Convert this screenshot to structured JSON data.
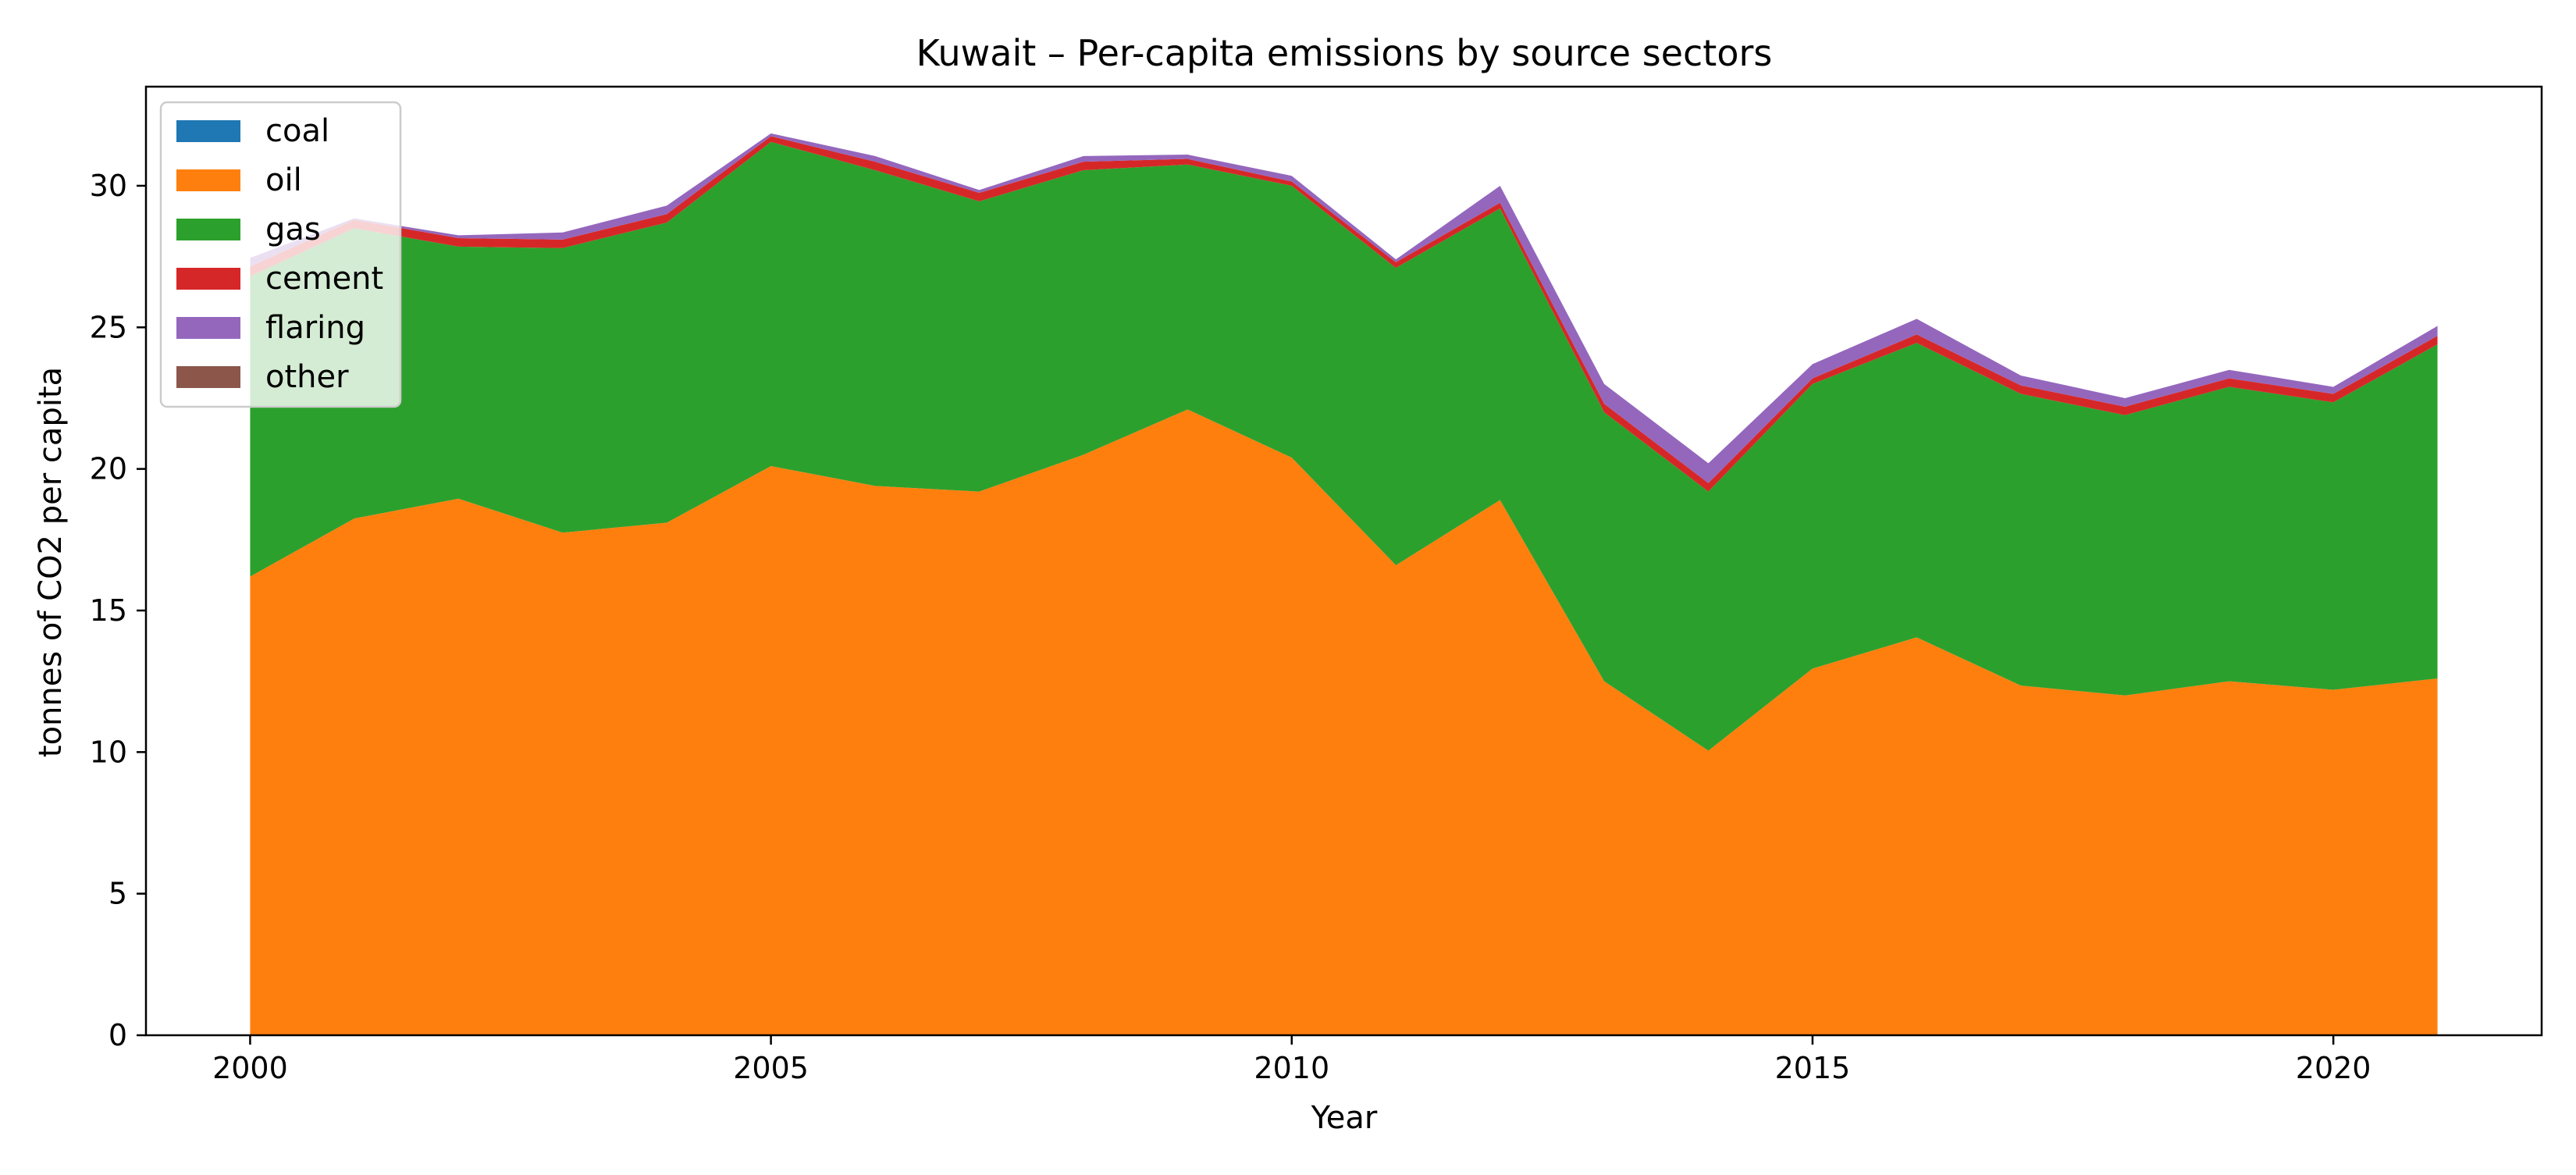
{
  "chart_data": {
    "type": "area",
    "stacked": true,
    "title": "Kuwait – Per-capita emissions by source sectors",
    "xlabel": "Year",
    "ylabel": "tonnes of CO2 per capita",
    "xlim": [
      1999,
      2022
    ],
    "ylim": [
      0,
      33.5
    ],
    "xticks": [
      2000,
      2005,
      2010,
      2015,
      2020
    ],
    "yticks": [
      0,
      5,
      10,
      15,
      20,
      25,
      30
    ],
    "grid": false,
    "legend_position": "upper-left",
    "x": [
      2000,
      2001,
      2002,
      2003,
      2004,
      2005,
      2006,
      2007,
      2008,
      2009,
      2010,
      2011,
      2012,
      2013,
      2014,
      2015,
      2016,
      2017,
      2018,
      2019,
      2020,
      2021
    ],
    "series": [
      {
        "name": "coal",
        "color": "#1f77b4",
        "values": [
          0,
          0,
          0,
          0,
          0,
          0,
          0,
          0,
          0,
          0,
          0,
          0,
          0,
          0,
          0,
          0,
          0,
          0,
          0,
          0,
          0,
          0
        ]
      },
      {
        "name": "oil",
        "color": "#ff7f0e",
        "values": [
          16.2,
          18.25,
          18.95,
          17.75,
          18.1,
          20.1,
          19.4,
          19.2,
          20.5,
          22.1,
          20.4,
          16.6,
          18.9,
          12.5,
          10.05,
          12.95,
          14.05,
          12.35,
          12.0,
          12.5,
          12.2,
          12.6
        ]
      },
      {
        "name": "gas",
        "color": "#2ca02c",
        "values": [
          10.6,
          10.25,
          8.9,
          10.05,
          10.6,
          11.45,
          11.15,
          10.25,
          10.05,
          8.65,
          9.6,
          10.5,
          10.3,
          9.5,
          9.15,
          10.05,
          10.4,
          10.3,
          9.9,
          10.4,
          10.15,
          11.8
        ]
      },
      {
        "name": "cement",
        "color": "#d62728",
        "values": [
          0.35,
          0.3,
          0.3,
          0.3,
          0.3,
          0.2,
          0.3,
          0.3,
          0.3,
          0.2,
          0.15,
          0.2,
          0.2,
          0.3,
          0.3,
          0.2,
          0.3,
          0.3,
          0.3,
          0.3,
          0.3,
          0.3
        ]
      },
      {
        "name": "flaring",
        "color": "#9467bd",
        "values": [
          0.3,
          0.05,
          0.1,
          0.25,
          0.3,
          0.1,
          0.2,
          0.1,
          0.2,
          0.15,
          0.2,
          0.1,
          0.6,
          0.7,
          0.7,
          0.5,
          0.55,
          0.35,
          0.3,
          0.3,
          0.25,
          0.35
        ]
      },
      {
        "name": "other",
        "color": "#8c564b",
        "values": [
          0,
          0,
          0,
          0,
          0,
          0,
          0,
          0,
          0,
          0,
          0,
          0,
          0,
          0,
          0,
          0,
          0,
          0,
          0,
          0,
          0,
          0
        ]
      }
    ]
  }
}
